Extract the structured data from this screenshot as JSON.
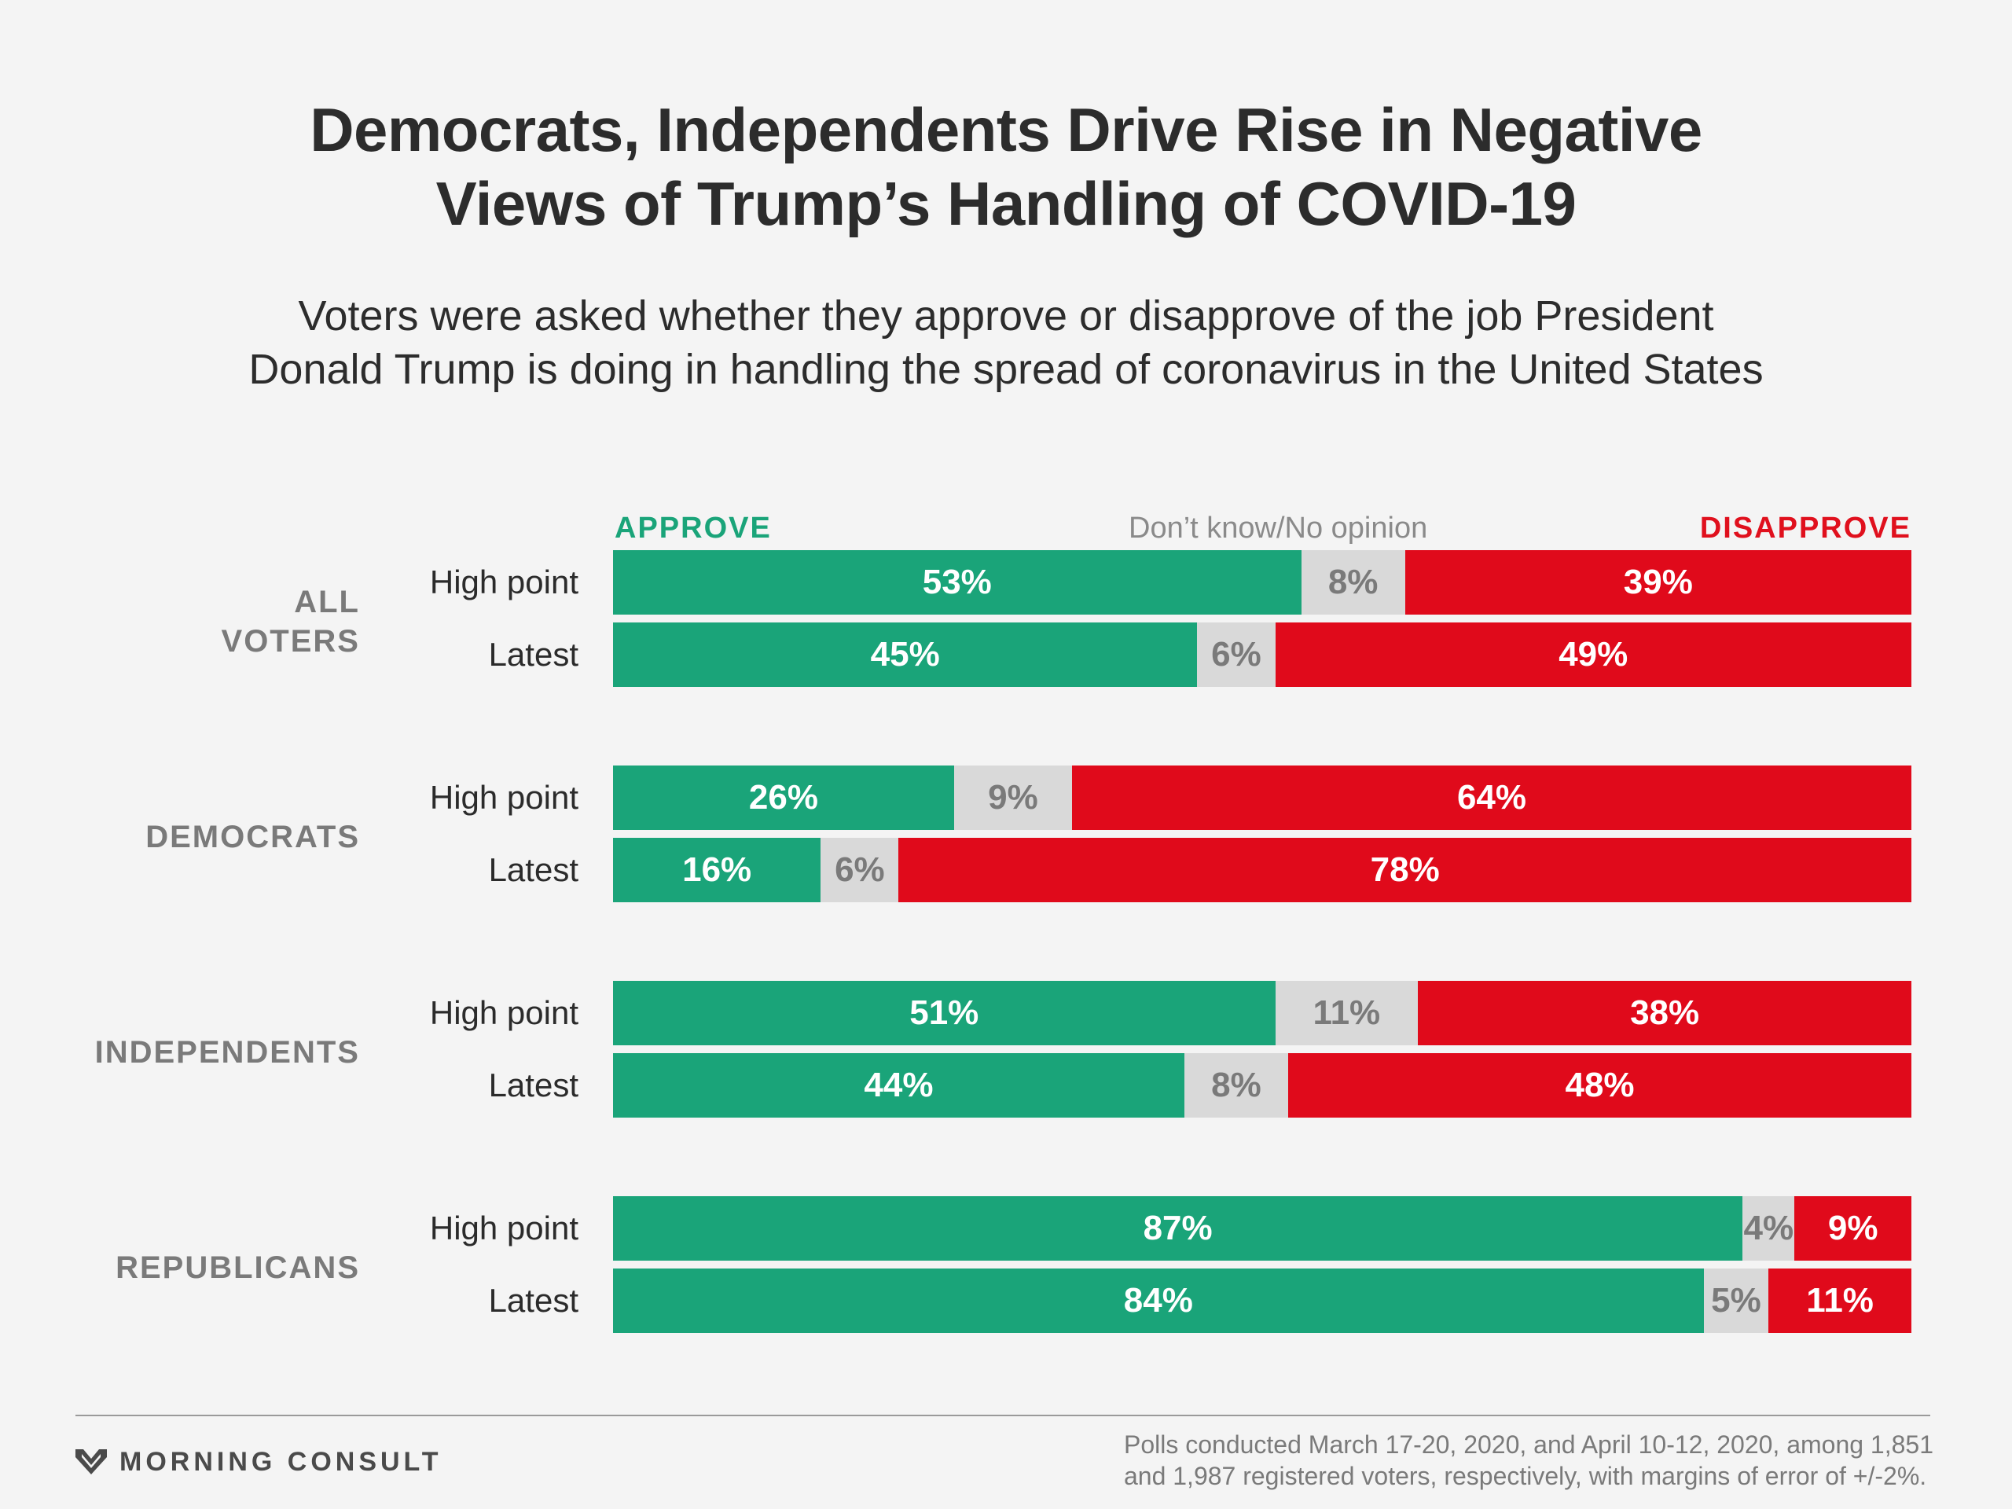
{
  "header": {
    "title_lines": [
      "Democrats, Independents Drive Rise in Negative",
      "Views of Trump’s Handling of COVID-19"
    ],
    "subtitle_lines": [
      "Voters were asked whether they approve or disapprove of the job President",
      "Donald Trump is doing in handling the spread of coronavirus in the United States"
    ]
  },
  "legend": {
    "approve": "APPROVE",
    "dont_know": "Don’t know/No opinion",
    "disapprove": "DISAPPROVE"
  },
  "colors": {
    "approve": "#1aa479",
    "dont_know": "#d9d9d9",
    "disapprove": "#e00a1b"
  },
  "chart_data": {
    "type": "bar",
    "stacked": true,
    "orientation": "horizontal",
    "title": "Democrats, Independents Drive Rise in Negative Views of Trump’s Handling of COVID-19",
    "subtitle": "Voters were asked whether they approve or disapprove of the job President Donald Trump is doing in handling the spread of coronavirus in the United States",
    "series": [
      {
        "name": "APPROVE",
        "values": [
          53,
          45,
          26,
          16,
          51,
          44,
          87,
          84
        ]
      },
      {
        "name": "Don’t know/No opinion",
        "values": [
          8,
          6,
          9,
          6,
          11,
          8,
          4,
          5
        ]
      },
      {
        "name": "DISAPPROVE",
        "values": [
          39,
          49,
          64,
          78,
          38,
          48,
          9,
          11
        ]
      }
    ],
    "groups": [
      {
        "name_lines": [
          "ALL",
          "VOTERS"
        ],
        "rows": [
          {
            "label": "High point",
            "approve": 53,
            "dont_know": 8,
            "disapprove": 39
          },
          {
            "label": "Latest",
            "approve": 45,
            "dont_know": 6,
            "disapprove": 49
          }
        ]
      },
      {
        "name_lines": [
          "DEMOCRATS"
        ],
        "rows": [
          {
            "label": "High point",
            "approve": 26,
            "dont_know": 9,
            "disapprove": 64
          },
          {
            "label": "Latest",
            "approve": 16,
            "dont_know": 6,
            "disapprove": 78
          }
        ]
      },
      {
        "name_lines": [
          "INDEPENDENTS"
        ],
        "rows": [
          {
            "label": "High point",
            "approve": 51,
            "dont_know": 11,
            "disapprove": 38
          },
          {
            "label": "Latest",
            "approve": 44,
            "dont_know": 8,
            "disapprove": 48
          }
        ]
      },
      {
        "name_lines": [
          "REPUBLICANS"
        ],
        "rows": [
          {
            "label": "High point",
            "approve": 87,
            "dont_know": 4,
            "disapprove": 9
          },
          {
            "label": "Latest",
            "approve": 84,
            "dont_know": 5,
            "disapprove": 11
          }
        ]
      }
    ],
    "value_suffix": "%",
    "legend_position": "top"
  },
  "footer": {
    "brand": "MORNING CONSULT",
    "brand_mark": "morning-consult-logo",
    "note_lines": [
      "Polls conducted March 17-20, 2020, and April 10-12, 2020, among 1,851",
      "and 1,987 registered voters, respectively, with margins of error of +/-2%."
    ]
  }
}
